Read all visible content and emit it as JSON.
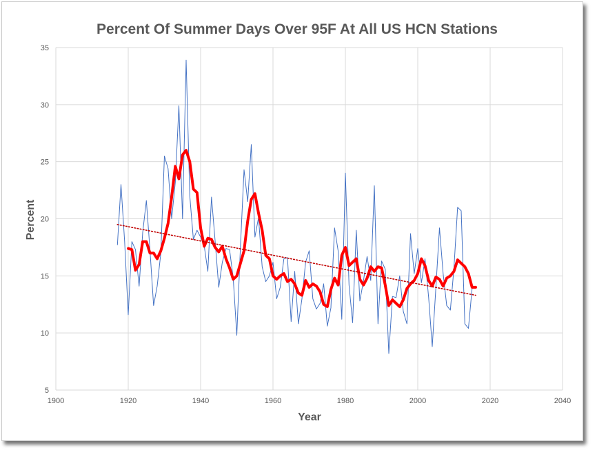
{
  "chart_data": {
    "type": "line",
    "title": "Percent Of Summer Days Over 95F At All US HCN Stations",
    "xlabel": "Year",
    "ylabel": "Percent",
    "xlim": [
      1900,
      2040
    ],
    "ylim": [
      5,
      35
    ],
    "xticks": [
      1900,
      1920,
      1940,
      1960,
      1980,
      2000,
      2020,
      2040
    ],
    "yticks": [
      5,
      10,
      15,
      20,
      25,
      30,
      35
    ],
    "grid": true,
    "legend": "none",
    "series": [
      {
        "color": "#4472c4",
        "style": "thin-line",
        "x": [
          1917,
          1918,
          1919,
          1920,
          1921,
          1922,
          1923,
          1924,
          1925,
          1926,
          1927,
          1928,
          1929,
          1930,
          1931,
          1932,
          1933,
          1934,
          1935,
          1936,
          1937,
          1938,
          1939,
          1940,
          1941,
          1942,
          1943,
          1944,
          1945,
          1946,
          1947,
          1948,
          1949,
          1950,
          1951,
          1952,
          1953,
          1954,
          1955,
          1956,
          1957,
          1958,
          1959,
          1960,
          1961,
          1962,
          1963,
          1964,
          1965,
          1966,
          1967,
          1968,
          1969,
          1970,
          1971,
          1972,
          1973,
          1974,
          1975,
          1976,
          1977,
          1978,
          1979,
          1980,
          1981,
          1982,
          1983,
          1984,
          1985,
          1986,
          1987,
          1988,
          1989,
          1990,
          1991,
          1992,
          1993,
          1994,
          1995,
          1996,
          1997,
          1998,
          1999,
          2000,
          2001,
          2002,
          2003,
          2004,
          2005,
          2006,
          2007,
          2008,
          2009,
          2010,
          2011,
          2012,
          2013,
          2014,
          2015,
          2016
        ],
        "y": [
          17.7,
          23.0,
          18.0,
          11.6,
          18.0,
          17.3,
          14.1,
          18.8,
          21.6,
          17.3,
          12.4,
          14.1,
          17.0,
          25.5,
          24.4,
          20.0,
          23.2,
          29.9,
          20.0,
          33.9,
          22.0,
          18.2,
          19.0,
          18.4,
          17.6,
          15.4,
          21.9,
          18.1,
          14.0,
          16.2,
          17.4,
          17.3,
          14.8,
          9.8,
          17.6,
          24.3,
          21.5,
          26.5,
          18.4,
          20.1,
          15.8,
          14.5,
          15.0,
          16.2,
          13.0,
          14.0,
          16.5,
          16.6,
          11.0,
          15.4,
          10.8,
          13.0,
          16.2,
          17.2,
          13.0,
          12.1,
          12.6,
          14.3,
          10.6,
          12.2,
          19.2,
          17.2,
          11.2,
          24.0,
          14.2,
          10.9,
          19.0,
          12.8,
          14.6,
          16.7,
          14.6,
          22.9,
          10.8,
          16.3,
          15.6,
          8.2,
          13.2,
          13.1,
          15.0,
          11.9,
          10.8,
          18.7,
          15.2,
          17.4,
          14.4,
          16.5,
          13.1,
          8.8,
          14.0,
          19.2,
          15.2,
          12.4,
          12.0,
          15.7,
          21.0,
          20.7,
          10.8,
          10.4,
          13.9,
          14.1
        ]
      },
      {
        "color": "#ff0000",
        "style": "thick-line",
        "x": [
          1920,
          1921,
          1922,
          1923,
          1924,
          1925,
          1926,
          1927,
          1928,
          1929,
          1930,
          1931,
          1932,
          1933,
          1934,
          1935,
          1936,
          1937,
          1938,
          1939,
          1940,
          1941,
          1942,
          1943,
          1944,
          1945,
          1946,
          1947,
          1948,
          1949,
          1950,
          1951,
          1952,
          1953,
          1954,
          1955,
          1956,
          1957,
          1958,
          1959,
          1960,
          1961,
          1962,
          1963,
          1964,
          1965,
          1966,
          1967,
          1968,
          1969,
          1970,
          1971,
          1972,
          1973,
          1974,
          1975,
          1976,
          1977,
          1978,
          1979,
          1980,
          1981,
          1982,
          1983,
          1984,
          1985,
          1986,
          1987,
          1988,
          1989,
          1990,
          1991,
          1992,
          1993,
          1994,
          1995,
          1996,
          1997,
          1998,
          1999,
          2000,
          2001,
          2002,
          2003,
          2004,
          2005,
          2006,
          2007,
          2008,
          2009,
          2010,
          2011,
          2012,
          2013,
          2014,
          2015,
          2016
        ],
        "y": [
          17.4,
          17.3,
          15.5,
          16.0,
          18.0,
          18.0,
          17.0,
          17.0,
          16.5,
          17.2,
          18.3,
          19.6,
          21.9,
          24.6,
          23.5,
          25.6,
          26.0,
          25.0,
          22.6,
          22.3,
          19.2,
          17.6,
          18.3,
          18.2,
          17.5,
          17.1,
          17.6,
          16.5,
          15.7,
          14.7,
          15.0,
          16.1,
          17.2,
          19.8,
          21.7,
          22.2,
          20.5,
          19.0,
          16.8,
          16.5,
          15.0,
          14.7,
          15.0,
          15.2,
          14.5,
          14.7,
          14.3,
          13.5,
          13.3,
          14.6,
          14.0,
          14.3,
          14.1,
          13.6,
          12.5,
          12.3,
          13.8,
          14.8,
          14.2,
          16.8,
          17.5,
          15.9,
          16.2,
          16.5,
          14.7,
          14.2,
          14.8,
          15.8,
          15.4,
          15.8,
          15.7,
          14.2,
          12.4,
          12.9,
          12.6,
          12.3,
          12.9,
          13.9,
          14.3,
          14.6,
          15.2,
          16.5,
          15.9,
          14.6,
          14.1,
          14.9,
          14.7,
          14.1,
          14.8,
          15.0,
          15.4,
          16.4,
          16.1,
          15.8,
          15.2,
          14.0,
          14.0
        ]
      },
      {
        "color": "#c00000",
        "style": "dotted-trendline",
        "x": [
          1917,
          2016
        ],
        "y": [
          19.5,
          13.3
        ]
      }
    ]
  }
}
